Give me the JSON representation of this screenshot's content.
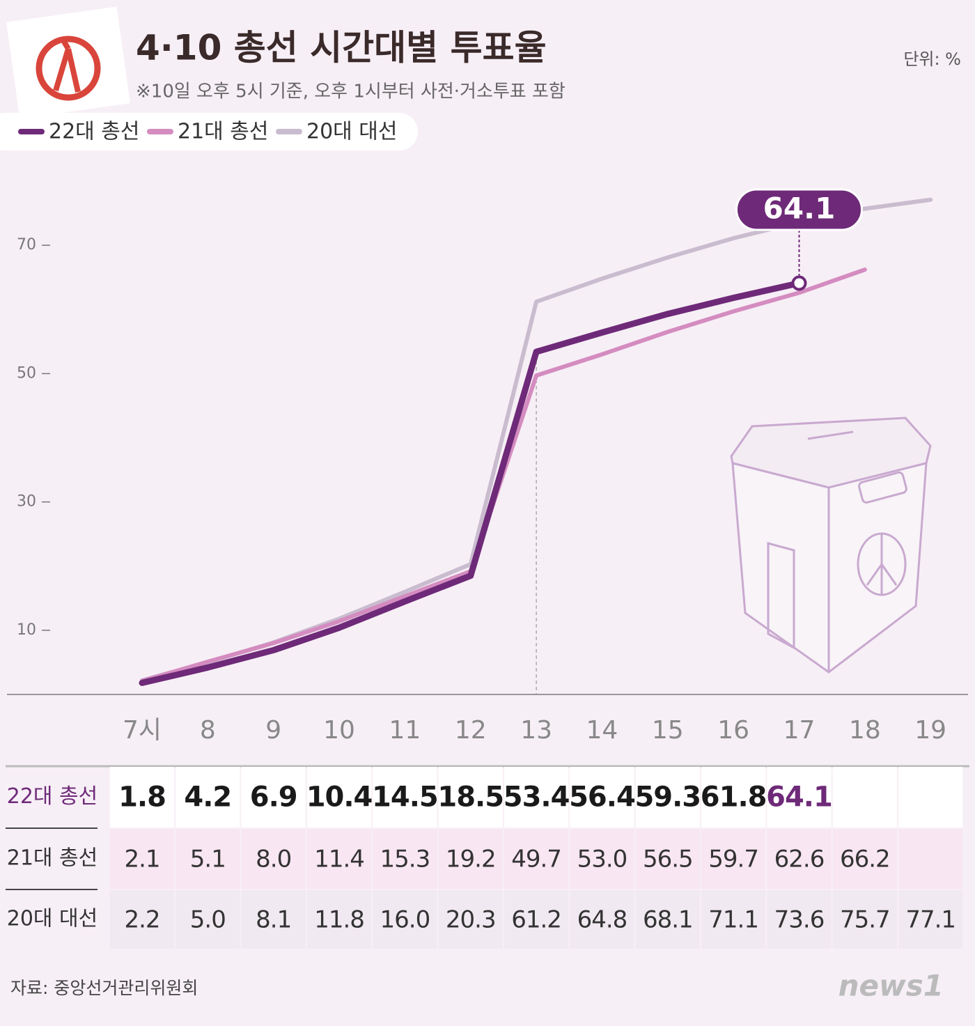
{
  "chart_data": {
    "type": "line",
    "title": "4·10 총선 시간대별 투표율",
    "subtitle": "※10일 오후 5시 기준, 오후 1시부터 사전·거소투표 포함",
    "unit": "단위: %",
    "source": "자료: 중앙선거관리위원회",
    "categories": [
      "7시",
      "8",
      "9",
      "10",
      "11",
      "12",
      "13",
      "14",
      "15",
      "16",
      "17",
      "18",
      "19"
    ],
    "series": [
      {
        "name": "22대 총선",
        "color": "#6e2a78",
        "values": [
          1.8,
          4.2,
          6.9,
          10.4,
          14.5,
          18.5,
          53.4,
          56.4,
          59.3,
          61.8,
          64.1,
          null,
          null
        ],
        "value_labels": [
          "1.8",
          "4.2",
          "6.9",
          "10.4",
          "14.5",
          "18.5",
          "53.4",
          "56.4",
          "59.3",
          "61.8",
          "64.1",
          null,
          null
        ]
      },
      {
        "name": "21대 총선",
        "color": "#d48cc0",
        "values": [
          2.1,
          5.1,
          8.0,
          11.4,
          15.3,
          19.2,
          49.7,
          53.0,
          56.5,
          59.7,
          62.6,
          66.2,
          null
        ],
        "value_labels": [
          "2.1",
          "5.1",
          "8.0",
          "11.4",
          "15.3",
          "19.2",
          "49.7",
          "53.0",
          "56.5",
          "59.7",
          "62.6",
          "66.2",
          null
        ]
      },
      {
        "name": "20대 대선",
        "color": "#c9bccf",
        "values": [
          2.2,
          5.0,
          8.1,
          11.8,
          16.0,
          20.3,
          61.2,
          64.8,
          68.1,
          71.1,
          73.6,
          75.7,
          77.1
        ],
        "value_labels": [
          "2.2",
          "5.0",
          "8.1",
          "11.8",
          "16.0",
          "20.3",
          "61.2",
          "64.8",
          "68.1",
          "71.1",
          "73.6",
          "75.7",
          "77.1"
        ]
      }
    ],
    "ylim": [
      0,
      80
    ],
    "yticks": [
      10,
      30,
      50,
      70
    ]
  },
  "logo": "news1"
}
